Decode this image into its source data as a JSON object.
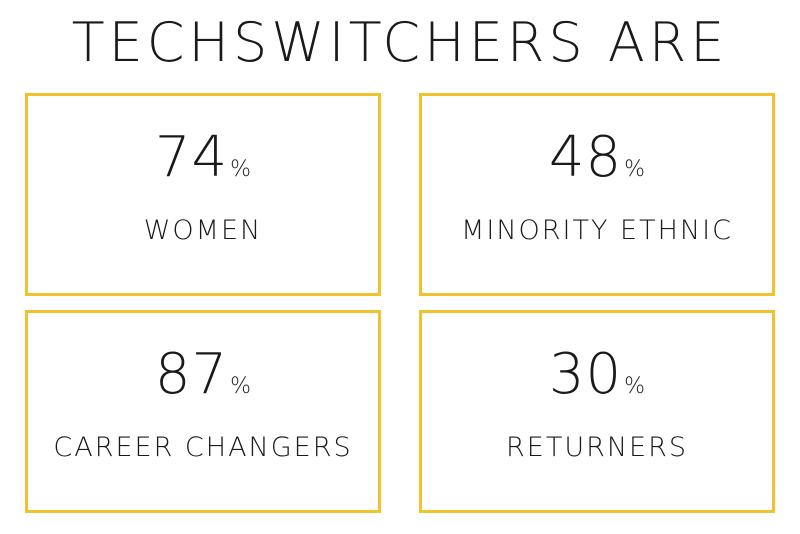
{
  "title": "TECHSWITCHERS ARE",
  "accent_color": "#f2c12e",
  "stats": [
    {
      "value": "74",
      "unit": "%",
      "label": "WOMEN"
    },
    {
      "value": "48",
      "unit": "%",
      "label": "MINORITY ETHNIC"
    },
    {
      "value": "87",
      "unit": "%",
      "label": "CAREER CHANGERS"
    },
    {
      "value": "30",
      "unit": "%",
      "label": "RETURNERS"
    }
  ]
}
